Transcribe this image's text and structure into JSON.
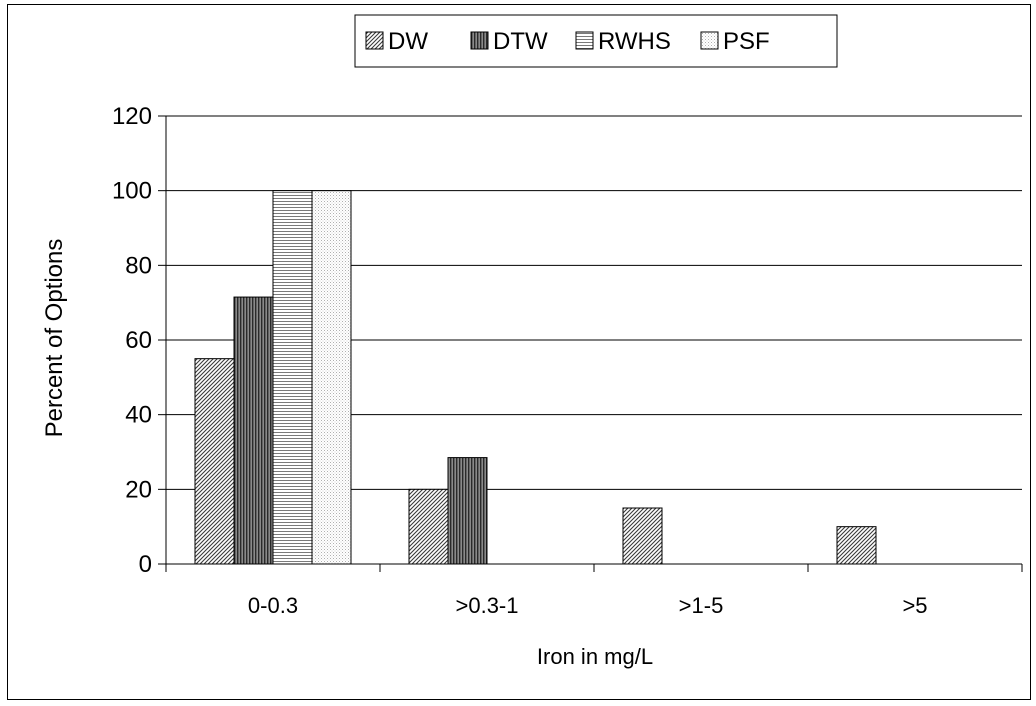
{
  "chart_data": {
    "type": "bar",
    "title": "",
    "xlabel": "Iron in mg/L",
    "ylabel": "Percent of Options",
    "categories": [
      "0-0.3",
      ">0.3-1",
      ">1-5",
      ">5"
    ],
    "ylim": [
      0,
      120
    ],
    "yticks": [
      "0",
      "20",
      "40",
      "60",
      "80",
      "100",
      "120"
    ],
    "grid": "horizontal",
    "legend_position": "top-center",
    "series": [
      {
        "name": "DW",
        "values": [
          55,
          20,
          15,
          10
        ],
        "pattern": "diagonal-dense"
      },
      {
        "name": "DTW",
        "values": [
          71.5,
          28.5,
          0,
          0
        ],
        "pattern": "vertical-dark"
      },
      {
        "name": "RWHS",
        "values": [
          100,
          0,
          0,
          0
        ],
        "pattern": "horizontal"
      },
      {
        "name": "PSF",
        "values": [
          100,
          0,
          0,
          0
        ],
        "pattern": "dots-light"
      }
    ]
  }
}
